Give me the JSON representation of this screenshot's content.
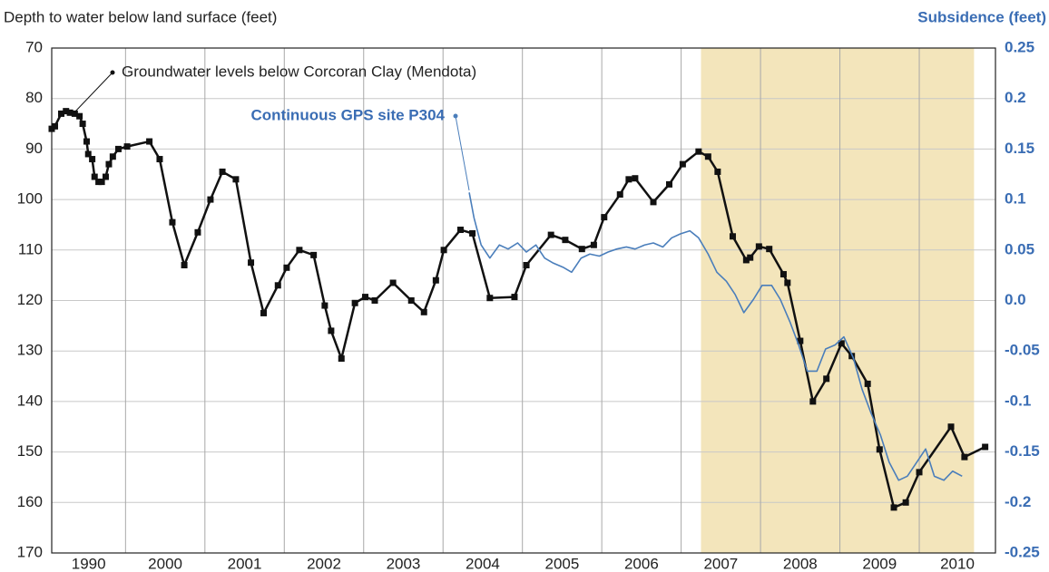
{
  "chart_data": {
    "type": "line",
    "y_title": "Depth to water below land surface (feet)",
    "y2_title": "Subsidence (feet)",
    "x_categories": [
      "1990",
      "2000",
      "2001",
      "2002",
      "2003",
      "2004",
      "2005",
      "2006",
      "2007",
      "2008",
      "2009",
      "2010"
    ],
    "xlim": [
      1998.07,
      2009.96
    ],
    "xticks": [
      1999,
      2000,
      2001,
      2002,
      2003,
      2004,
      2005,
      2006,
      2007,
      2008,
      2009
    ],
    "ylim": [
      70,
      170
    ],
    "y_inverted": true,
    "yticks": [
      70,
      80,
      90,
      100,
      110,
      120,
      130,
      140,
      150,
      160,
      170
    ],
    "y2lim": [
      -0.25,
      0.25
    ],
    "y2ticks": [
      0.25,
      0.2,
      0.15,
      0.1,
      0.05,
      {
        "value": 0,
        "label": "0.0"
      },
      -0.05,
      -0.1,
      -0.15,
      -0.2,
      -0.25
    ],
    "grid": true,
    "shaded_range": [
      2006.25,
      2009.69
    ],
    "shaded_color": "#f3e5bb",
    "series": [
      {
        "name": "Groundwater levels below Corcoran Clay (Mendota)",
        "color": "#111111",
        "markers": true,
        "x": [
          1998.07,
          1998.11,
          1998.19,
          1998.25,
          1998.3,
          1998.36,
          1998.42,
          1998.46,
          1998.51,
          1998.53,
          1998.58,
          1998.61,
          1998.66,
          1998.7,
          1998.75,
          1998.79,
          1998.84,
          1998.91,
          1999.02,
          1999.3,
          1999.43,
          1999.59,
          1999.74,
          1999.91,
          2000.07,
          2000.22,
          2000.39,
          2000.58,
          2000.74,
          2000.92,
          2001.03,
          2001.19,
          2001.37,
          2001.51,
          2001.59,
          2001.72,
          2001.89,
          2002.02,
          2002.14,
          2002.37,
          2002.6,
          2002.76,
          2002.91,
          2003.01,
          2003.22,
          2003.37,
          2003.59,
          2003.9,
          2004.05,
          2004.36,
          2004.54,
          2004.75,
          2004.9,
          2005.03,
          2005.23,
          2005.34,
          2005.42,
          2005.65,
          2005.85,
          2006.02,
          2006.22,
          2006.34,
          2006.46,
          2006.65,
          2006.82,
          2006.87,
          2006.98,
          2007.11,
          2007.29,
          2007.34,
          2007.5,
          2007.66,
          2007.83,
          2008.02,
          2008.15,
          2008.35,
          2008.5,
          2008.68,
          2008.83,
          2009.0,
          2009.4,
          2009.57,
          2009.83
        ],
        "values": [
          86,
          85.5,
          83,
          82.5,
          82.8,
          83,
          83.5,
          85,
          88.5,
          91,
          92,
          95.5,
          96.5,
          96.5,
          95.5,
          93,
          91.5,
          90,
          89.5,
          88.5,
          92,
          104.5,
          113,
          106.5,
          100,
          94.5,
          96,
          112.5,
          122.5,
          117,
          113.5,
          110,
          111,
          121,
          126,
          131.5,
          120.5,
          119.3,
          120,
          116.5,
          120,
          122.3,
          116,
          110,
          106,
          106.7,
          119.5,
          119.3,
          113,
          107,
          108,
          109.8,
          109,
          103.5,
          99,
          96,
          95.8,
          100.5,
          97,
          93,
          90.5,
          91.5,
          94.5,
          107.3,
          112,
          111.5,
          109.3,
          109.8,
          114.8,
          116.5,
          128,
          140,
          135.5,
          128.5,
          131,
          136.5,
          149.5,
          161,
          160,
          154,
          145,
          151,
          149
        ]
      },
      {
        "name": "Continuous GPS site P304",
        "color": "#4a7ebb",
        "axis": "y2",
        "markers": false,
        "x": [
          2003.33,
          2003.39,
          2003.48,
          2003.59,
          2003.71,
          2003.82,
          2003.94,
          2004.05,
          2004.17,
          2004.28,
          2004.39,
          2004.51,
          2004.62,
          2004.74,
          2004.85,
          2004.97,
          2005.08,
          2005.19,
          2005.31,
          2005.42,
          2005.54,
          2005.65,
          2005.77,
          2005.88,
          2005.99,
          2006.11,
          2006.22,
          2006.34,
          2006.45,
          2006.57,
          2006.68,
          2006.79,
          2006.91,
          2007.02,
          2007.14,
          2007.25,
          2007.37,
          2007.48,
          2007.59,
          2007.71,
          2007.82,
          2007.94,
          2008.05,
          2008.17,
          2008.28,
          2008.39,
          2008.51,
          2008.62,
          2008.74,
          2008.85,
          2008.97,
          2009.08,
          2009.19,
          2009.31,
          2009.42,
          2009.54
        ],
        "values": [
          0.107,
          0.082,
          0.055,
          0.042,
          0.055,
          0.051,
          0.057,
          0.048,
          0.055,
          0.042,
          0.037,
          0.033,
          0.028,
          0.042,
          0.046,
          0.044,
          0.048,
          0.051,
          0.053,
          0.051,
          0.055,
          0.057,
          0.053,
          0.062,
          0.066,
          0.069,
          0.062,
          0.046,
          0.028,
          0.019,
          0.006,
          -0.012,
          0.001,
          0.015,
          0.015,
          0.001,
          -0.021,
          -0.044,
          -0.07,
          -0.07,
          -0.048,
          -0.044,
          -0.036,
          -0.057,
          -0.088,
          -0.111,
          -0.133,
          -0.16,
          -0.178,
          -0.174,
          -0.16,
          -0.147,
          -0.174,
          -0.178,
          -0.169,
          -0.174
        ]
      }
    ]
  }
}
